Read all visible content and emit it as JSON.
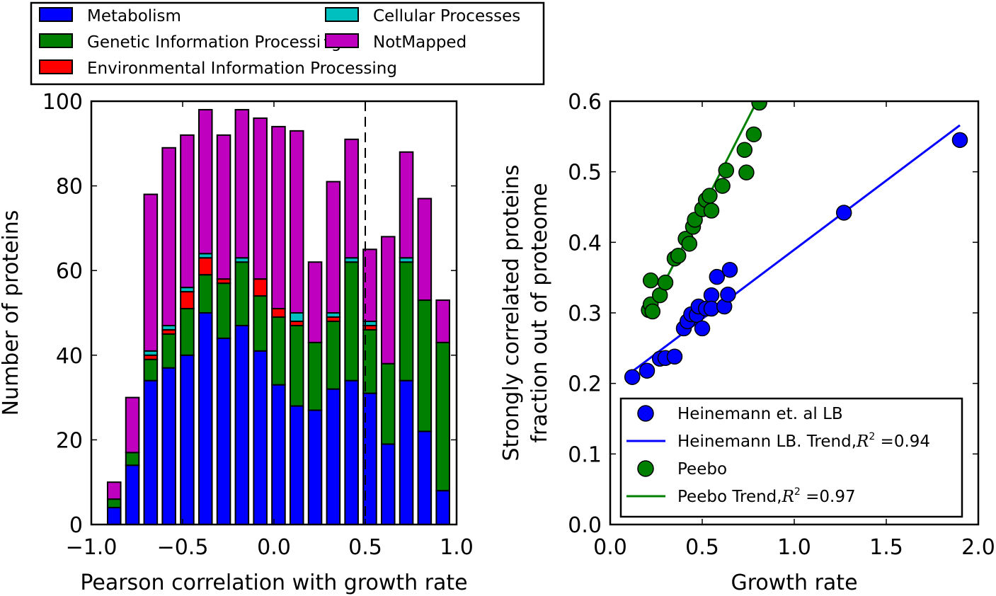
{
  "chart_data": [
    {
      "type": "bar",
      "stacked": true,
      "xlabel": "Pearson correlation with growth rate",
      "ylabel": "Number of proteins",
      "xlim": [
        -1.0,
        1.0
      ],
      "ylim": [
        0,
        100
      ],
      "xticks": [
        -1.0,
        -0.5,
        0.0,
        0.5,
        1.0
      ],
      "xtick_labels": [
        "−1.0",
        "−0.5",
        "0.0",
        "0.5",
        "1.0"
      ],
      "yticks": [
        0,
        20,
        40,
        60,
        80,
        100
      ],
      "ytick_labels": [
        "0",
        "20",
        "40",
        "60",
        "80",
        "100"
      ],
      "grid": false,
      "legend_position": "above plot, two columns",
      "bar_width": 0.072,
      "x": [
        -0.875,
        -0.775,
        -0.675,
        -0.575,
        -0.475,
        -0.375,
        -0.275,
        -0.175,
        -0.075,
        0.025,
        0.125,
        0.225,
        0.325,
        0.425,
        0.525,
        0.625,
        0.725,
        0.825,
        0.925
      ],
      "vline_x": 0.5,
      "series": [
        {
          "name": "Metabolism",
          "color": "#0000ff",
          "values": [
            4,
            14,
            34,
            37,
            40,
            50,
            44,
            47,
            41,
            33,
            28,
            27,
            32,
            34,
            31,
            19,
            34,
            22,
            8
          ]
        },
        {
          "name": "Genetic Information Processing",
          "color": "#008000",
          "values": [
            2,
            3,
            5,
            8,
            11,
            9,
            13,
            15,
            13,
            16,
            19,
            16,
            16,
            28,
            15,
            19,
            28,
            31,
            35
          ]
        },
        {
          "name": "Environmental Information Processing",
          "color": "#ff0000",
          "values": [
            0,
            0,
            1,
            1,
            4,
            4,
            1,
            0,
            4,
            2,
            1,
            0,
            1,
            0,
            1,
            0,
            0,
            0,
            0
          ]
        },
        {
          "name": "Cellular Processes",
          "color": "#00bfbf",
          "values": [
            0,
            0,
            1,
            1,
            1,
            1,
            0,
            1,
            0,
            0,
            2,
            0,
            1,
            1,
            1,
            0,
            1,
            0,
            0
          ]
        },
        {
          "name": "NotMapped",
          "color": "#bf00bf",
          "values": [
            4,
            13,
            37,
            42,
            36,
            34,
            34,
            35,
            38,
            43,
            43,
            19,
            31,
            28,
            17,
            30,
            25,
            24,
            10
          ]
        }
      ]
    },
    {
      "type": "scatter",
      "xlabel": "Growth rate",
      "ylabel": "Strongly correlated proteins",
      "ylabel_line2": "fraction out of proteome",
      "xlim": [
        0.0,
        2.0
      ],
      "ylim": [
        0.0,
        0.6
      ],
      "xticks": [
        0.0,
        0.5,
        1.0,
        1.5,
        2.0
      ],
      "xtick_labels": [
        "0.0",
        "0.5",
        "1.0",
        "1.5",
        "2.0"
      ],
      "yticks": [
        0.0,
        0.1,
        0.2,
        0.3,
        0.4,
        0.5,
        0.6
      ],
      "ytick_labels": [
        "0.0",
        "0.1",
        "0.2",
        "0.3",
        "0.4",
        "0.5",
        "0.6"
      ],
      "grid": false,
      "legend_position": "lower right",
      "series": [
        {
          "name": "Heinemann et. al LB",
          "kind": "points",
          "color": "#0000ff",
          "x": [
            0.12,
            0.2,
            0.27,
            0.3,
            0.35,
            0.4,
            0.42,
            0.44,
            0.47,
            0.48,
            0.5,
            0.52,
            0.55,
            0.55,
            0.58,
            0.62,
            0.64,
            0.65,
            1.27,
            1.9
          ],
          "y": [
            0.209,
            0.218,
            0.235,
            0.236,
            0.238,
            0.278,
            0.288,
            0.298,
            0.297,
            0.309,
            0.278,
            0.306,
            0.325,
            0.306,
            0.351,
            0.309,
            0.326,
            0.361,
            0.442,
            0.545
          ]
        },
        {
          "name": "Heinemann LB. Trend,",
          "r2_text": "=0.94",
          "kind": "line",
          "color": "#0000ff",
          "x": [
            0.11,
            1.9
          ],
          "y": [
            0.215,
            0.566
          ]
        },
        {
          "name": "Peebo",
          "kind": "points",
          "color": "#008000",
          "x": [
            0.21,
            0.22,
            0.23,
            0.22,
            0.27,
            0.3,
            0.35,
            0.37,
            0.41,
            0.43,
            0.45,
            0.46,
            0.5,
            0.52,
            0.55,
            0.54,
            0.61,
            0.63,
            0.73,
            0.74,
            0.78,
            0.81
          ],
          "y": [
            0.304,
            0.312,
            0.302,
            0.346,
            0.325,
            0.343,
            0.377,
            0.381,
            0.405,
            0.398,
            0.422,
            0.432,
            0.447,
            0.46,
            0.445,
            0.466,
            0.48,
            0.502,
            0.531,
            0.499,
            0.553,
            0.598
          ]
        },
        {
          "name": "Peebo Trend,",
          "r2_text": "=0.97",
          "kind": "line",
          "color": "#008000",
          "x": [
            0.21,
            0.86
          ],
          "y": [
            0.3,
            0.632
          ]
        }
      ]
    }
  ]
}
